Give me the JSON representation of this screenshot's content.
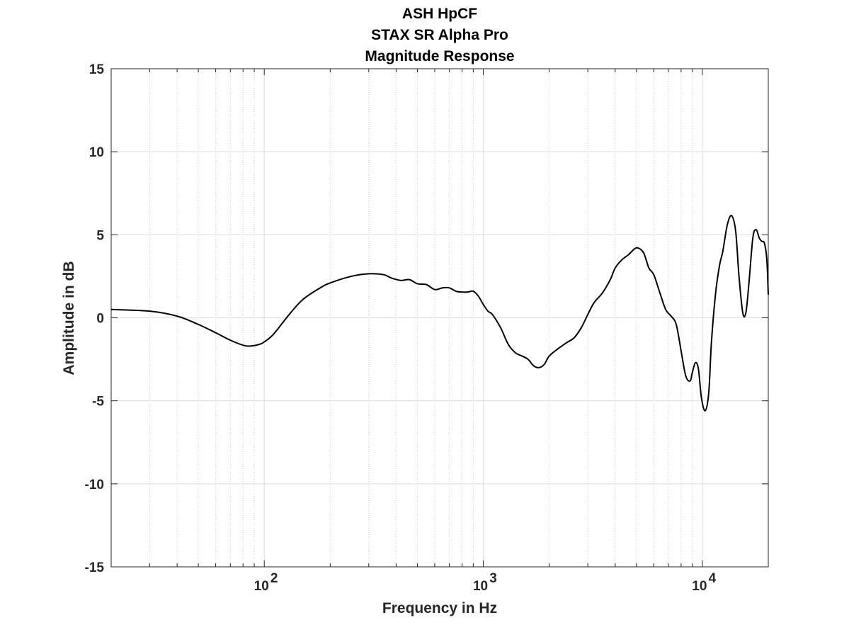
{
  "chart_data": {
    "type": "line",
    "title_lines": [
      "ASH HpCF",
      "STAX SR Alpha Pro",
      "Magnitude Response"
    ],
    "xlabel": "Frequency in Hz",
    "ylabel": "Amplitude in dB",
    "xscale": "log",
    "xlim": [
      20,
      20000
    ],
    "ylim": [
      -15,
      15
    ],
    "yticks": [
      15,
      10,
      5,
      0,
      -5,
      -10,
      -15
    ],
    "ytick_labels": [
      "15",
      "10",
      "5",
      "0",
      "-5",
      "-10",
      "-15"
    ],
    "xticks": [
      100,
      1000,
      10000
    ],
    "xtick_labels": [
      {
        "base": "10",
        "exp": "2"
      },
      {
        "base": "10",
        "exp": "3"
      },
      {
        "base": "10",
        "exp": "4"
      }
    ],
    "grid": true,
    "minor_grid": true,
    "line_color": "#000000",
    "series": [
      {
        "x": [
          20,
          30,
          40,
          50,
          60,
          70,
          80,
          86,
          95,
          100,
          110,
          130,
          150,
          180,
          200,
          250,
          300,
          350,
          380,
          420,
          460,
          500,
          550,
          600,
          650,
          700,
          750,
          800,
          850,
          900,
          950,
          1000,
          1050,
          1100,
          1200,
          1300,
          1400,
          1500,
          1600,
          1700,
          1800,
          1900,
          2000,
          2200,
          2400,
          2600,
          2800,
          3000,
          3200,
          3500,
          3800,
          4000,
          4300,
          4600,
          4900,
          5100,
          5400,
          5700,
          6000,
          6400,
          6800,
          7200,
          7600,
          8000,
          8400,
          8800,
          9000,
          9300,
          9600,
          9900,
          10300,
          10700,
          11000,
          11500,
          12000,
          12400,
          13000,
          13600,
          14200,
          14700,
          15300,
          15800,
          16300,
          17000,
          17600,
          18200,
          18700,
          19200,
          19700,
          20000
        ],
        "y": [
          0.5,
          0.4,
          0.1,
          -0.4,
          -0.9,
          -1.35,
          -1.65,
          -1.7,
          -1.6,
          -1.45,
          -1.0,
          0.2,
          1.1,
          1.8,
          2.1,
          2.5,
          2.65,
          2.6,
          2.4,
          2.25,
          2.3,
          2.05,
          2.0,
          1.7,
          1.8,
          1.8,
          1.6,
          1.55,
          1.55,
          1.6,
          1.3,
          0.8,
          0.4,
          0.2,
          -0.6,
          -1.6,
          -2.1,
          -2.3,
          -2.5,
          -2.9,
          -3.0,
          -2.8,
          -2.3,
          -1.85,
          -1.5,
          -1.2,
          -0.6,
          0.2,
          0.9,
          1.5,
          2.3,
          3.0,
          3.5,
          3.8,
          4.15,
          4.2,
          3.9,
          3.0,
          2.6,
          1.5,
          0.5,
          0.1,
          -0.4,
          -2.0,
          -3.5,
          -3.8,
          -3.3,
          -2.7,
          -3.1,
          -4.8,
          -5.6,
          -4.5,
          -1.5,
          1.5,
          3.2,
          4.0,
          5.6,
          6.15,
          5.2,
          2.5,
          0.3,
          0.3,
          2.0,
          4.8,
          5.3,
          4.8,
          4.6,
          4.5,
          3.5,
          1.4
        ]
      }
    ]
  }
}
